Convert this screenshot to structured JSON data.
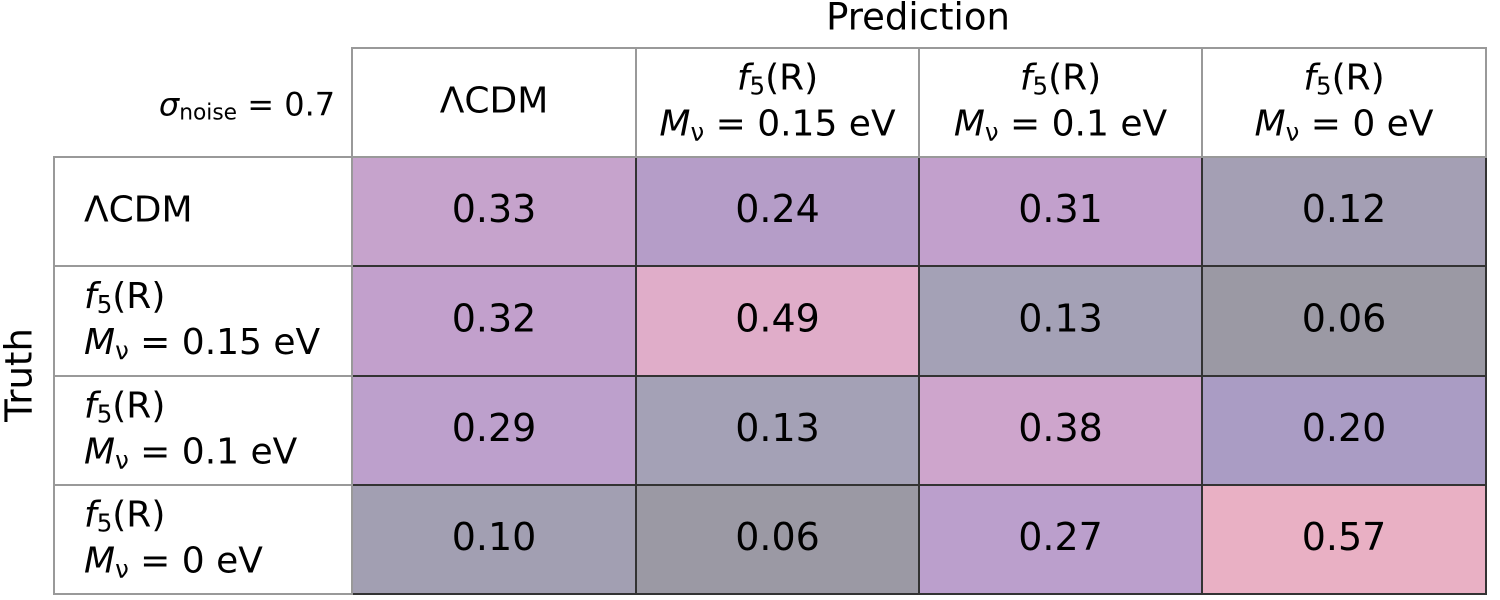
{
  "title_top": "Prediction",
  "title_side": "Truth",
  "corner": {
    "main": "σ",
    "sub": "noise",
    "after": " = 0.7"
  },
  "columns": [
    [
      {
        "main": "ΛCDM"
      }
    ],
    [
      {
        "main": "f",
        "sub": "5",
        "after": "(R)"
      },
      {
        "main": "M",
        "sub": "ν",
        "after": " = 0.15 eV"
      }
    ],
    [
      {
        "main": "f",
        "sub": "5",
        "after": "(R)"
      },
      {
        "main": "M",
        "sub": "ν",
        "after": " = 0.1 eV"
      }
    ],
    [
      {
        "main": "f",
        "sub": "5",
        "after": "(R)"
      },
      {
        "main": "M",
        "sub": "ν",
        "after": " = 0 eV"
      }
    ]
  ],
  "rows": [
    [
      {
        "main": "ΛCDM"
      }
    ],
    [
      {
        "main": "f",
        "sub": "5",
        "after": "(R)"
      },
      {
        "main": "M",
        "sub": "ν",
        "after": " = 0.15 eV"
      }
    ],
    [
      {
        "main": "f",
        "sub": "5",
        "after": "(R)"
      },
      {
        "main": "M",
        "sub": "ν",
        "after": " = 0.1 eV"
      }
    ],
    [
      {
        "main": "f",
        "sub": "5",
        "after": "(R)"
      },
      {
        "main": "M",
        "sub": "ν",
        "after": " = 0 eV"
      }
    ]
  ],
  "cells": [
    [
      "0.33",
      "0.24",
      "0.31",
      "0.12"
    ],
    [
      "0.32",
      "0.49",
      "0.13",
      "0.06"
    ],
    [
      "0.29",
      "0.13",
      "0.38",
      "0.20"
    ],
    [
      "0.10",
      "0.06",
      "0.27",
      "0.57"
    ]
  ],
  "cell_colors": [
    [
      "#c6a3cc",
      "#b59dc8",
      "#c2a0cc",
      "#a49fb4"
    ],
    [
      "#c2a0cc",
      "#e0adc9",
      "#a4a1b6",
      "#9b99a4"
    ],
    [
      "#bda0cc",
      "#a4a1b6",
      "#cea5cc",
      "#aa9cc4"
    ],
    [
      "#a29fb2",
      "#9b99a4",
      "#bb9fcc",
      "#e9b0c4"
    ]
  ]
}
